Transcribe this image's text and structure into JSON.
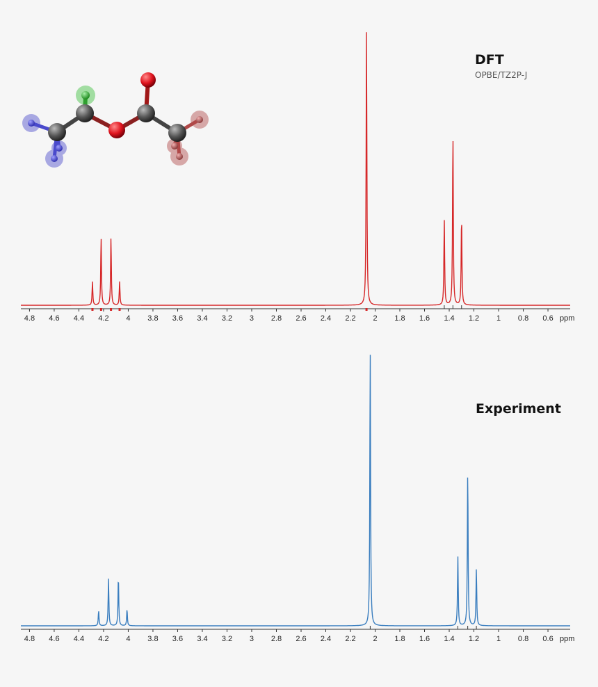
{
  "chart_data": [
    {
      "type": "line",
      "title": "DFT",
      "subtitle": "OPBE/TZ2P-J",
      "color": "#d62728",
      "xlabel": "ppm",
      "xlim": [
        4.87,
        0.42
      ],
      "x_reversed": true,
      "ticks": [
        "4.8",
        "4.6",
        "4.4",
        "4.2",
        "4",
        "3.8",
        "3.6",
        "3.4",
        "3.2",
        "3",
        "2.8",
        "2.6",
        "2.4",
        "2.2",
        "2",
        "1.8",
        "1.6",
        "1.4",
        "1.2",
        "1",
        "0.8",
        "0.6"
      ],
      "peaks": [
        {
          "ppm": 4.29,
          "intensity": 0.085
        },
        {
          "ppm": 4.22,
          "intensity": 0.245
        },
        {
          "ppm": 4.14,
          "intensity": 0.245
        },
        {
          "ppm": 4.07,
          "intensity": 0.085
        },
        {
          "ppm": 2.07,
          "intensity": 1.0
        },
        {
          "ppm": 1.44,
          "intensity": 0.31
        },
        {
          "ppm": 1.37,
          "intensity": 0.625
        },
        {
          "ppm": 1.3,
          "intensity": 0.325
        }
      ],
      "stick_marks": [
        4.29,
        4.22,
        4.14,
        4.07,
        2.07
      ],
      "thin_marks": [
        1.44,
        1.37,
        1.3
      ]
    },
    {
      "type": "line",
      "title": "Experiment",
      "color": "#3a7ebf",
      "xlabel": "ppm",
      "xlim": [
        4.87,
        0.42
      ],
      "x_reversed": true,
      "ticks": [
        "4.8",
        "4.6",
        "4.4",
        "4.2",
        "4",
        "3.8",
        "3.6",
        "3.4",
        "3.2",
        "3",
        "2.8",
        "2.6",
        "2.4",
        "2.2",
        "2",
        "1.8",
        "1.6",
        "1.4",
        "1.2",
        "1",
        "0.8",
        "0.6"
      ],
      "peaks": [
        {
          "ppm": 4.24,
          "intensity": 0.055
        },
        {
          "ppm": 4.16,
          "intensity": 0.17
        },
        {
          "ppm": 4.08,
          "intensity": 0.18
        },
        {
          "ppm": 4.01,
          "intensity": 0.06
        },
        {
          "ppm": 2.04,
          "intensity": 1.0
        },
        {
          "ppm": 1.33,
          "intensity": 0.25
        },
        {
          "ppm": 1.25,
          "intensity": 0.565
        },
        {
          "ppm": 1.18,
          "intensity": 0.205
        }
      ],
      "thin_marks": [
        2.04,
        1.33,
        1.25,
        1.18
      ]
    }
  ],
  "molecule": {
    "atoms": [
      {
        "id": "c1",
        "el": "C",
        "color": "#555555"
      },
      {
        "id": "c2",
        "el": "C",
        "color": "#555555"
      },
      {
        "id": "o1",
        "el": "O",
        "color": "#e0141e"
      },
      {
        "id": "c3",
        "el": "C",
        "color": "#555555"
      },
      {
        "id": "o2",
        "el": "O",
        "color": "#e0141e"
      },
      {
        "id": "c4",
        "el": "C",
        "color": "#555555"
      }
    ],
    "h_groups": [
      {
        "group": "CH3 (ethyl)",
        "color": "#4a4acc"
      },
      {
        "group": "CH2",
        "color": "#3cbf3c"
      },
      {
        "group": "CH3 (acetyl)",
        "color": "#b04848"
      }
    ]
  }
}
